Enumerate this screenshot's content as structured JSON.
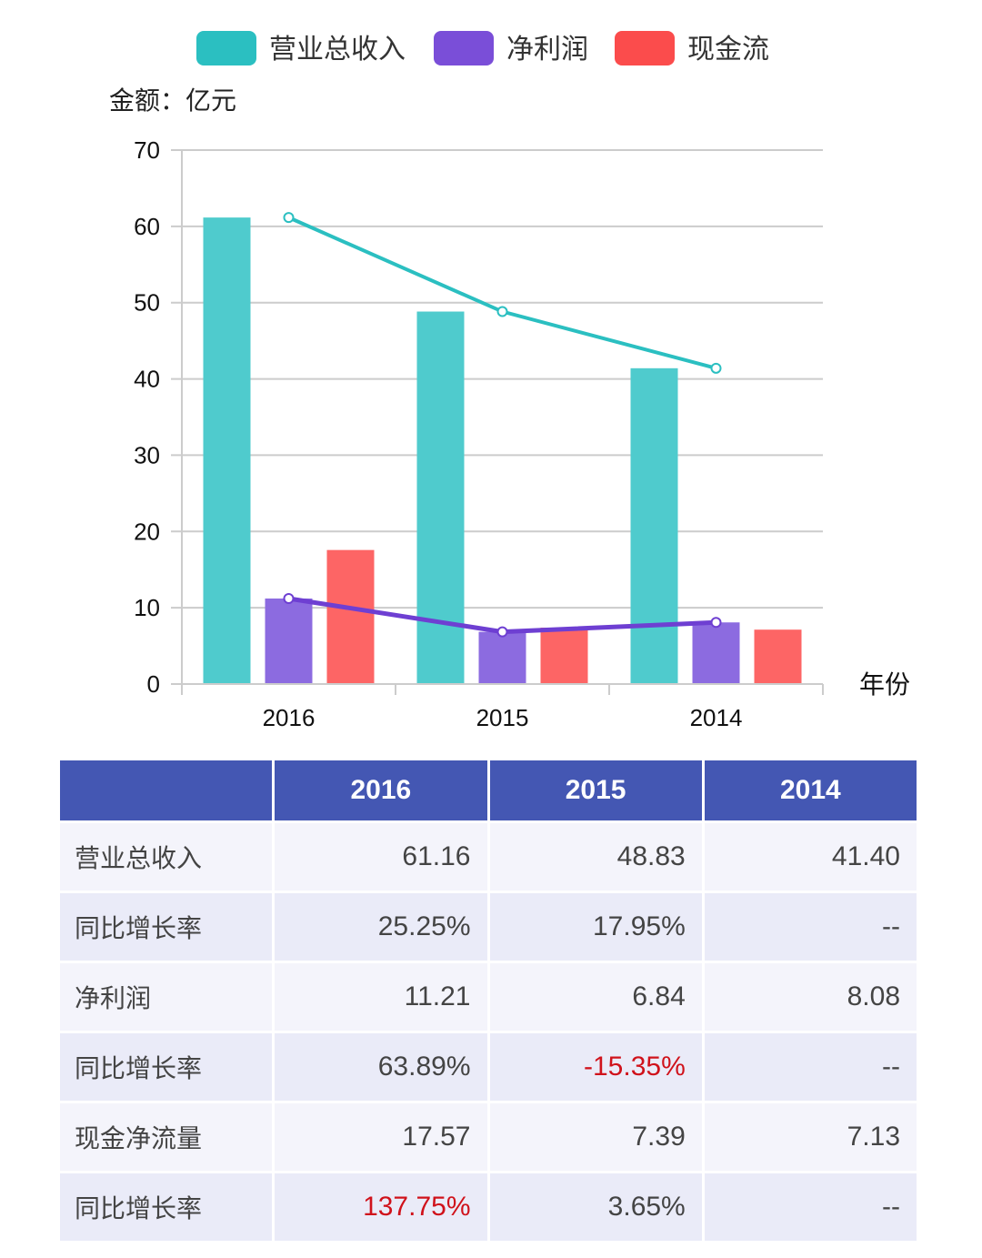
{
  "chart_data": {
    "type": "bar",
    "title": "",
    "xlabel": "年份",
    "ylabel": "金额：亿元",
    "ylim": [
      0,
      70
    ],
    "yticks": [
      0,
      10,
      20,
      30,
      40,
      50,
      60,
      70
    ],
    "categories": [
      "2016",
      "2015",
      "2014"
    ],
    "grid": true,
    "legend_position": "top",
    "series": [
      {
        "name": "营业总收入",
        "type": "bar+line",
        "color": "#2bbfc1",
        "values": [
          61.16,
          48.83,
          41.4
        ]
      },
      {
        "name": "净利润",
        "type": "bar+line",
        "color": "#7a4ed8",
        "values": [
          11.21,
          6.84,
          8.08
        ]
      },
      {
        "name": "现金流",
        "type": "bar",
        "color": "#fb4c4c",
        "values": [
          17.57,
          7.39,
          7.13
        ]
      }
    ]
  },
  "table": {
    "headers": [
      "",
      "2016",
      "2015",
      "2014"
    ],
    "rows": [
      {
        "label": "营业总收入",
        "cells": [
          {
            "v": "61.16"
          },
          {
            "v": "48.83"
          },
          {
            "v": "41.40"
          }
        ]
      },
      {
        "label": "同比增长率",
        "cells": [
          {
            "v": "25.25%"
          },
          {
            "v": "17.95%"
          },
          {
            "v": "--"
          }
        ]
      },
      {
        "label": "净利润",
        "cells": [
          {
            "v": "11.21"
          },
          {
            "v": "6.84"
          },
          {
            "v": "8.08"
          }
        ]
      },
      {
        "label": "同比增长率",
        "cells": [
          {
            "v": "63.89%"
          },
          {
            "v": "-15.35%",
            "negative": true
          },
          {
            "v": "--"
          }
        ]
      },
      {
        "label": "现金净流量",
        "cells": [
          {
            "v": "17.57"
          },
          {
            "v": "7.39"
          },
          {
            "v": "7.13"
          }
        ]
      },
      {
        "label": "同比增长率",
        "cells": [
          {
            "v": "137.75%",
            "negative": true
          },
          {
            "v": "3.65%"
          },
          {
            "v": "--"
          }
        ]
      }
    ]
  }
}
